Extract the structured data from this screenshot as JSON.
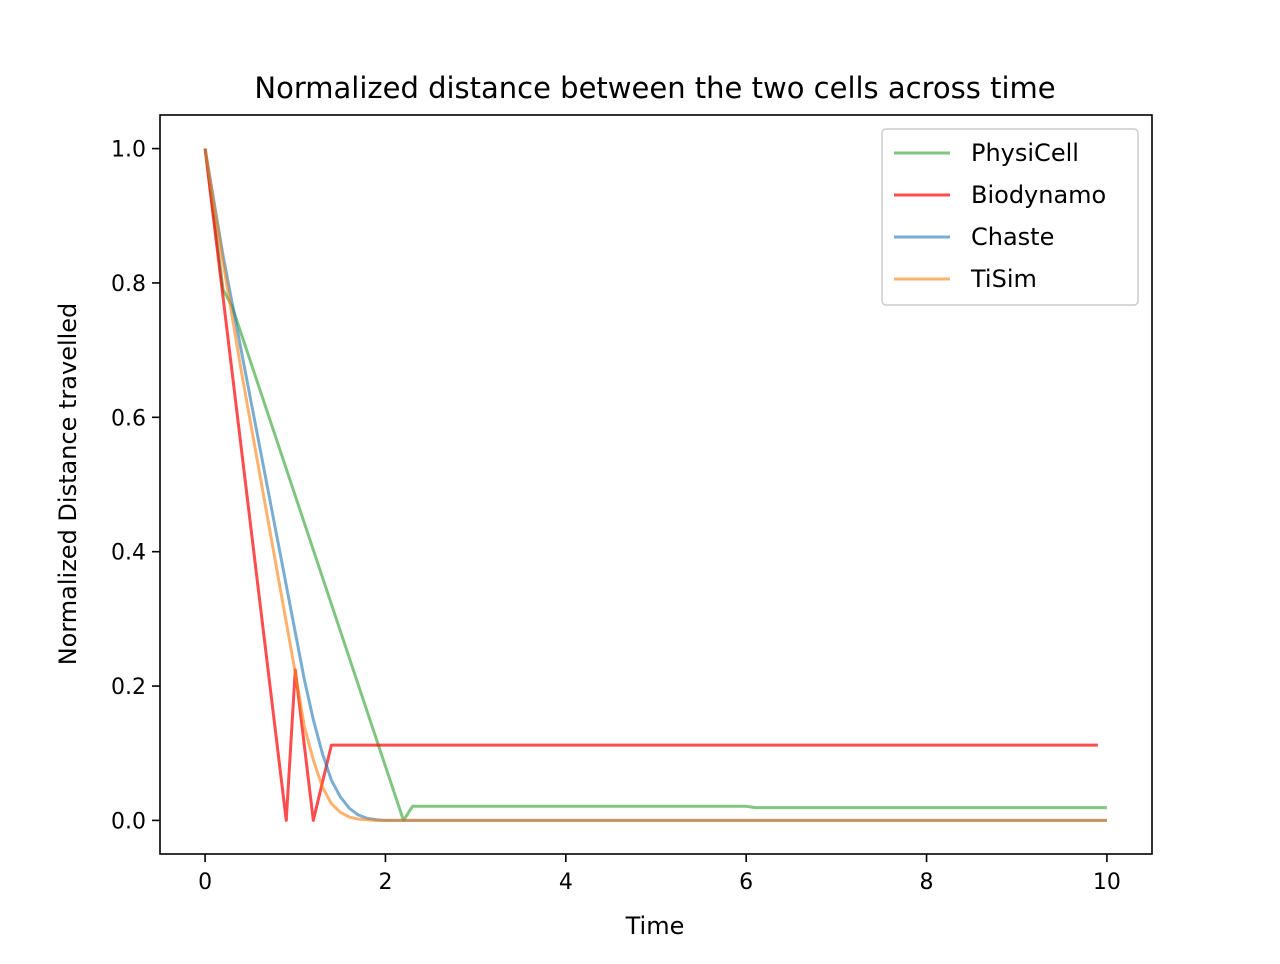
{
  "chart_data": {
    "type": "line",
    "title": "Normalized distance between the two cells across time",
    "xlabel": "Time",
    "ylabel": "Normalized Distance travelled",
    "xlim": [
      -0.5,
      10.5
    ],
    "ylim": [
      -0.05,
      1.05
    ],
    "xticks": [
      0,
      2,
      4,
      6,
      8,
      10
    ],
    "xtick_labels": [
      "0",
      "2",
      "4",
      "6",
      "8",
      "10"
    ],
    "yticks": [
      0.0,
      0.2,
      0.4,
      0.6,
      0.8,
      1.0
    ],
    "ytick_labels": [
      "0.0",
      "0.2",
      "0.4",
      "0.6",
      "0.8",
      "1.0"
    ],
    "grid": false,
    "legend_position": "top-right",
    "series": [
      {
        "name": "PhysiCell",
        "color": "#2ca02c",
        "opacity": 0.6,
        "x": [
          0,
          0.2,
          0.3,
          2.2,
          2.3,
          6.0,
          6.1,
          10.0
        ],
        "y": [
          1.0,
          0.79,
          0.765,
          0.0,
          0.021,
          0.021,
          0.019,
          0.019
        ]
      },
      {
        "name": "Biodynamo",
        "color": "#ff0000",
        "opacity": 0.7,
        "x": [
          0,
          0.9,
          1.0,
          1.2,
          1.4,
          9.9
        ],
        "y": [
          1.0,
          0.0,
          0.224,
          0.0,
          0.112,
          0.112
        ]
      },
      {
        "name": "Chaste",
        "color": "#1f77b4",
        "opacity": 0.6,
        "x": [
          0,
          0.2,
          0.4,
          0.6,
          0.8,
          1.0,
          1.1,
          1.2,
          1.3,
          1.4,
          1.5,
          1.6,
          1.7,
          1.8,
          1.9,
          2.0,
          3.0,
          10.0
        ],
        "y": [
          1.0,
          0.84,
          0.7,
          0.56,
          0.42,
          0.28,
          0.21,
          0.15,
          0.1,
          0.06,
          0.035,
          0.018,
          0.008,
          0.003,
          0.001,
          0.0,
          0.0,
          0.0
        ]
      },
      {
        "name": "TiSim",
        "color": "#ff7f0e",
        "opacity": 0.6,
        "x": [
          0,
          0.2,
          0.4,
          0.6,
          0.8,
          1.0,
          1.1,
          1.2,
          1.3,
          1.4,
          1.5,
          1.6,
          1.7,
          1.8,
          1.9,
          2.0,
          3.0,
          10.0
        ],
        "y": [
          1.0,
          0.83,
          0.67,
          0.52,
          0.37,
          0.22,
          0.14,
          0.09,
          0.05,
          0.025,
          0.012,
          0.005,
          0.002,
          0.001,
          0.0,
          0.0,
          0.0,
          0.0
        ]
      }
    ]
  }
}
